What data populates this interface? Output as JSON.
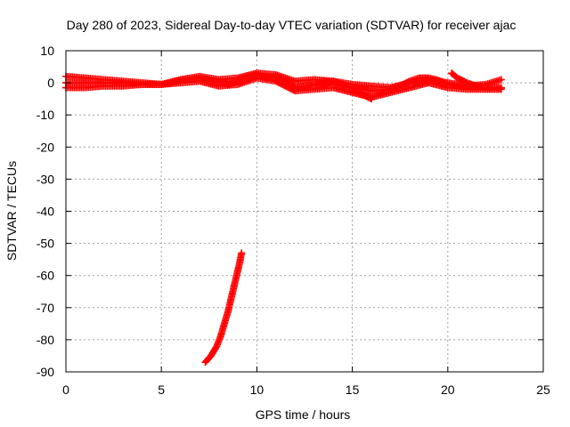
{
  "chart_data": {
    "type": "scatter",
    "title": "Day 280 of 2023, Sidereal Day-to-day VTEC variation (SDTVAR) for receiver ajac",
    "xlabel": "GPS time / hours",
    "ylabel": "SDTVAR / TECUs",
    "xlim": [
      0,
      25
    ],
    "ylim": [
      -90,
      10
    ],
    "xticks": [
      0,
      5,
      10,
      15,
      20,
      25
    ],
    "yticks": [
      10,
      0,
      -10,
      -20,
      -30,
      -40,
      -50,
      -60,
      -70,
      -80,
      -90
    ],
    "grid": true,
    "marker": "plus",
    "color": "#ff0000",
    "series": [
      {
        "name": "main-band",
        "x": [
          0,
          1,
          2,
          3,
          4,
          5,
          5.5,
          6,
          7,
          7.5,
          8,
          8.5,
          9,
          9.5,
          10,
          10.5,
          11,
          11.5,
          12,
          12.5,
          13,
          13.5,
          14,
          14.5,
          15,
          15.5,
          16,
          17,
          17.5,
          18,
          18.5,
          19,
          19.5,
          20,
          21,
          22,
          22.8
        ],
        "y": [
          0,
          0,
          0,
          0,
          -0.5,
          -0.5,
          0,
          0.8,
          1.5,
          0.8,
          0.5,
          -0.5,
          0.5,
          2,
          2.5,
          1.5,
          2,
          0.5,
          -1.5,
          -1,
          -0.5,
          -0.5,
          0.5,
          -0.5,
          -1.5,
          -2,
          -2.5,
          -2,
          -1,
          0.5,
          1.5,
          1.5,
          0.8,
          -0.5,
          -1.5,
          -1.5,
          -1.5
        ]
      },
      {
        "name": "band-spread",
        "x": [
          0,
          1,
          2,
          3,
          4,
          5,
          6,
          7,
          8,
          9,
          10,
          11,
          12,
          13,
          14,
          15,
          16,
          17,
          18,
          19,
          20,
          21,
          22,
          22.8
        ],
        "y": [
          2,
          1.5,
          1,
          0.5,
          0,
          -0.5,
          1,
          2,
          1,
          1.5,
          3,
          2.5,
          0.5,
          1,
          0.5,
          -0.5,
          -1,
          -1.5,
          0,
          1,
          0,
          -1,
          -0.5,
          1
        ]
      },
      {
        "name": "band-lower",
        "x": [
          0,
          1,
          2,
          3,
          4,
          5,
          6,
          7,
          8,
          9,
          10,
          11,
          12,
          13,
          14,
          15,
          16,
          17,
          18,
          19,
          20,
          21,
          22,
          22.8
        ],
        "y": [
          -1.5,
          -1.5,
          -1,
          -1,
          -0.5,
          -0.5,
          0,
          0.5,
          -1,
          -0.5,
          1.5,
          0.5,
          -2.5,
          -2,
          -1.5,
          -3,
          -4.5,
          -3,
          -1.5,
          0,
          -1.5,
          -2,
          -2,
          -2
        ]
      },
      {
        "name": "drop-14h",
        "x": [
          13.5,
          14,
          14.5,
          15,
          15.5,
          16
        ],
        "y": [
          0.5,
          0,
          -1,
          -2.5,
          -3.5,
          -5
        ]
      },
      {
        "name": "recovery-20h",
        "x": [
          20.2,
          20.5,
          21,
          21.5,
          22
        ],
        "y": [
          3,
          1.5,
          0,
          -1,
          -1.5
        ]
      },
      {
        "name": "outlier-arc",
        "x": [
          7.3,
          7.6,
          7.9,
          8.1,
          8.3,
          8.5,
          8.7,
          8.9,
          9.1,
          9.2
        ],
        "y": [
          -87,
          -85,
          -82,
          -79,
          -75,
          -71,
          -66,
          -61,
          -56,
          -53
        ]
      }
    ]
  }
}
